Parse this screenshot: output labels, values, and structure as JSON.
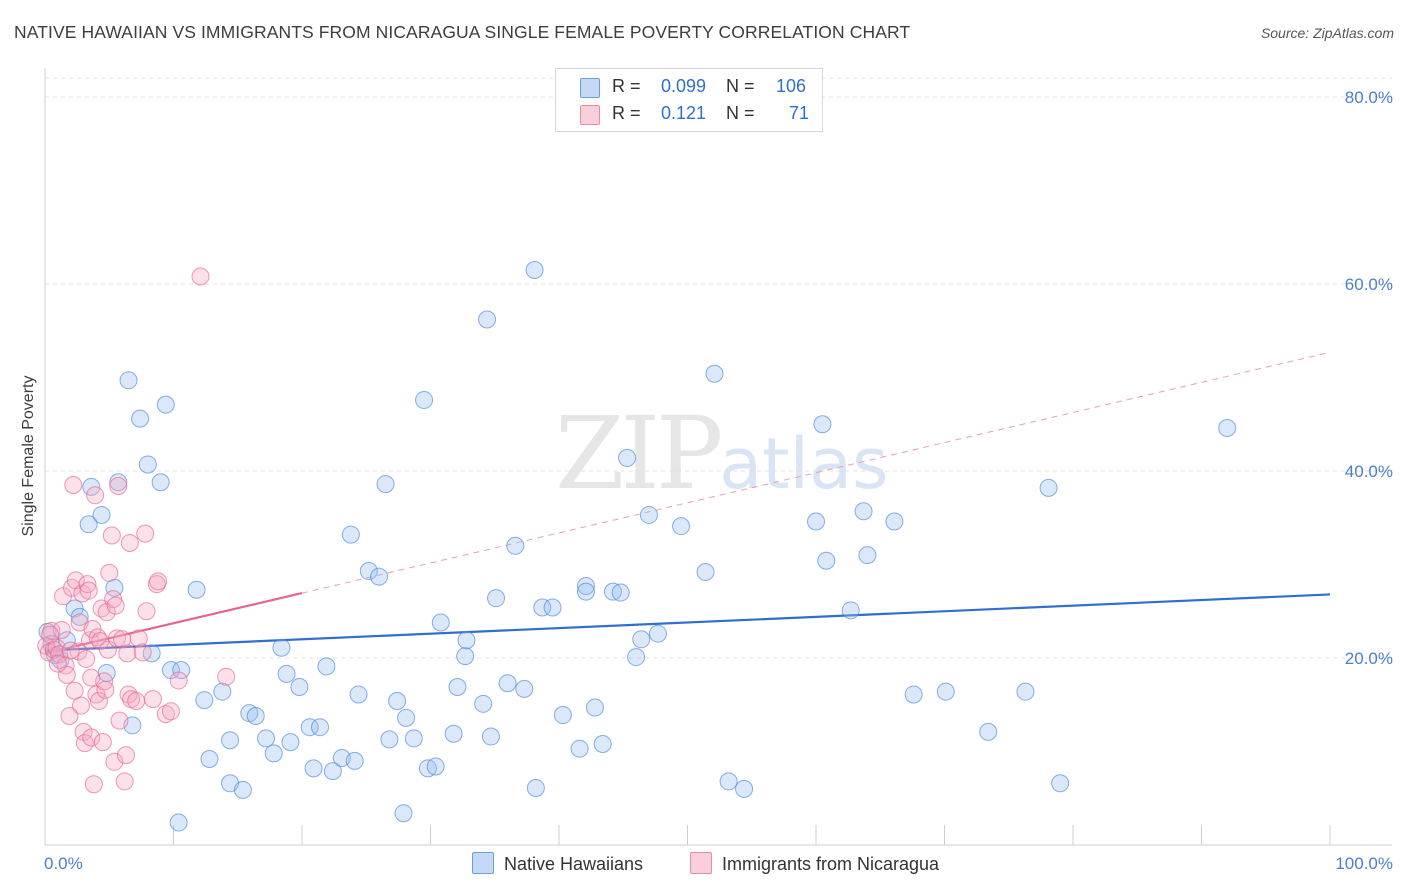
{
  "title": "NATIVE HAWAIIAN VS IMMIGRANTS FROM NICARAGUA SINGLE FEMALE POVERTY CORRELATION CHART",
  "source": "Source: ZipAtlas.com",
  "watermark": {
    "zip": "ZIP",
    "atlas": "atlas"
  },
  "legend": {
    "rows": [
      {
        "r_label": "R =",
        "r_value": "0.099",
        "n_label": "N =",
        "n_value": "106",
        "color": "#a9c8f0"
      },
      {
        "r_label": "R =",
        "r_value": "0.121",
        "n_label": "N =",
        "n_value": "71",
        "color": "#f5b8cc"
      }
    ]
  },
  "bottom_legend": {
    "items": [
      {
        "label": "Native Hawaiians",
        "color": "#a9c8f0"
      },
      {
        "label": "Immigrants from Nicaragua",
        "color": "#f5b8cc"
      }
    ]
  },
  "chart_data": {
    "type": "scatter",
    "title": "NATIVE HAWAIIAN VS IMMIGRANTS FROM NICARAGUA SINGLE FEMALE POVERTY CORRELATION CHART",
    "xlabel": "",
    "ylabel": "Single Female Poverty",
    "xlim": [
      0,
      100
    ],
    "ylim": [
      0,
      83
    ],
    "x_tick_labels": [
      "0.0%",
      "100.0%"
    ],
    "y_ticks": [
      20,
      40,
      60,
      80
    ],
    "y_tick_labels": [
      "20.0%",
      "40.0%",
      "60.0%",
      "80.0%"
    ],
    "grid": true,
    "series": [
      {
        "name": "Native Hawaiians",
        "color": "#4a86d8",
        "fill": "rgba(150,190,240,0.35)",
        "trend": {
          "x0": 0,
          "y0": 20.8,
          "x1": 100,
          "y1": 26.8,
          "dashed_from": null
        },
        "points": [
          [
            0.2,
            22.8
          ],
          [
            0.5,
            21.5
          ],
          [
            0.8,
            20.3
          ],
          [
            1.2,
            19.8
          ],
          [
            1.7,
            21.9
          ],
          [
            2.3,
            25.3
          ],
          [
            2.7,
            24.4
          ],
          [
            3.4,
            34.3
          ],
          [
            3.6,
            38.3
          ],
          [
            4.4,
            35.3
          ],
          [
            4.8,
            18.4
          ],
          [
            5.4,
            27.5
          ],
          [
            5.7,
            38.8
          ],
          [
            6.5,
            49.7
          ],
          [
            6.8,
            12.8
          ],
          [
            7.4,
            45.6
          ],
          [
            8.0,
            40.7
          ],
          [
            8.3,
            20.5
          ],
          [
            9.0,
            38.8
          ],
          [
            9.4,
            47.1
          ],
          [
            9.8,
            18.7
          ],
          [
            10.4,
            2.4
          ],
          [
            10.6,
            18.7
          ],
          [
            11.8,
            27.3
          ],
          [
            12.4,
            15.5
          ],
          [
            12.8,
            9.2
          ],
          [
            13.8,
            16.4
          ],
          [
            14.4,
            11.2
          ],
          [
            14.4,
            6.6
          ],
          [
            15.4,
            5.9
          ],
          [
            15.9,
            14.1
          ],
          [
            16.4,
            13.8
          ],
          [
            17.2,
            11.4
          ],
          [
            17.8,
            9.8
          ],
          [
            18.4,
            21.1
          ],
          [
            18.8,
            18.3
          ],
          [
            19.1,
            11.0
          ],
          [
            19.8,
            16.9
          ],
          [
            20.6,
            12.6
          ],
          [
            20.9,
            8.2
          ],
          [
            21.4,
            12.6
          ],
          [
            21.9,
            19.1
          ],
          [
            22.4,
            7.9
          ],
          [
            23.1,
            9.3
          ],
          [
            23.8,
            33.2
          ],
          [
            24.1,
            9.0
          ],
          [
            24.4,
            16.1
          ],
          [
            25.2,
            29.3
          ],
          [
            26.0,
            28.7
          ],
          [
            26.5,
            38.6
          ],
          [
            26.8,
            11.3
          ],
          [
            27.4,
            15.4
          ],
          [
            27.9,
            3.4
          ],
          [
            28.1,
            13.6
          ],
          [
            28.7,
            11.4
          ],
          [
            29.5,
            47.6
          ],
          [
            29.8,
            8.2
          ],
          [
            30.4,
            8.4
          ],
          [
            30.8,
            23.8
          ],
          [
            31.8,
            11.9
          ],
          [
            32.1,
            16.9
          ],
          [
            32.7,
            20.2
          ],
          [
            32.8,
            21.9
          ],
          [
            34.1,
            15.1
          ],
          [
            34.7,
            11.6
          ],
          [
            34.4,
            56.2
          ],
          [
            35.1,
            26.4
          ],
          [
            36.0,
            17.3
          ],
          [
            36.6,
            32.0
          ],
          [
            37.3,
            16.7
          ],
          [
            38.2,
            6.1
          ],
          [
            38.7,
            25.4
          ],
          [
            39.5,
            25.4
          ],
          [
            40.3,
            13.9
          ],
          [
            41.6,
            10.3
          ],
          [
            42.1,
            27.7
          ],
          [
            42.1,
            27.1
          ],
          [
            42.8,
            14.7
          ],
          [
            43.4,
            10.8
          ],
          [
            44.2,
            27.1
          ],
          [
            44.8,
            27.0
          ],
          [
            45.3,
            41.4
          ],
          [
            46.0,
            20.1
          ],
          [
            46.4,
            22.0
          ],
          [
            47.0,
            35.3
          ],
          [
            47.7,
            22.6
          ],
          [
            49.5,
            34.1
          ],
          [
            51.4,
            29.2
          ],
          [
            52.1,
            50.4
          ],
          [
            53.2,
            6.8
          ],
          [
            54.4,
            6.0
          ],
          [
            60.0,
            34.6
          ],
          [
            60.5,
            45.0
          ],
          [
            60.8,
            30.4
          ],
          [
            62.7,
            25.1
          ],
          [
            63.7,
            35.7
          ],
          [
            64.0,
            31.0
          ],
          [
            66.1,
            34.6
          ],
          [
            67.6,
            16.1
          ],
          [
            70.1,
            16.4
          ],
          [
            73.4,
            12.1
          ],
          [
            76.3,
            16.4
          ],
          [
            78.1,
            38.2
          ],
          [
            79.0,
            6.6
          ],
          [
            92.0,
            44.6
          ],
          [
            38.1,
            61.5
          ]
        ]
      },
      {
        "name": "Immigrants from Nicaragua",
        "color": "#e8638f",
        "fill": "rgba(245,170,195,0.35)",
        "trend": {
          "x0": 0,
          "y0": 20.5,
          "x1": 100,
          "y1": 52.7,
          "solid_until": 20
        },
        "points": [
          [
            0.1,
            21.3
          ],
          [
            0.3,
            20.6
          ],
          [
            0.5,
            22.9
          ],
          [
            0.7,
            20.9
          ],
          [
            0.9,
            21.1
          ],
          [
            1.1,
            20.4
          ],
          [
            1.3,
            23.0
          ],
          [
            1.4,
            26.6
          ],
          [
            1.6,
            19.2
          ],
          [
            1.7,
            18.2
          ],
          [
            1.9,
            13.8
          ],
          [
            2.1,
            27.5
          ],
          [
            2.2,
            38.5
          ],
          [
            2.3,
            16.5
          ],
          [
            2.4,
            28.3
          ],
          [
            2.6,
            20.7
          ],
          [
            2.7,
            23.8
          ],
          [
            2.8,
            14.9
          ],
          [
            2.9,
            26.9
          ],
          [
            3.0,
            12.1
          ],
          [
            3.1,
            10.9
          ],
          [
            3.2,
            19.9
          ],
          [
            3.3,
            27.9
          ],
          [
            3.4,
            27.2
          ],
          [
            3.5,
            21.9
          ],
          [
            3.6,
            11.5
          ],
          [
            3.7,
            23.1
          ],
          [
            3.8,
            6.5
          ],
          [
            3.9,
            37.4
          ],
          [
            4.0,
            16.1
          ],
          [
            4.1,
            22.2
          ],
          [
            4.2,
            15.4
          ],
          [
            4.3,
            21.8
          ],
          [
            4.4,
            25.3
          ],
          [
            4.6,
            17.5
          ],
          [
            4.7,
            16.6
          ],
          [
            4.8,
            24.9
          ],
          [
            4.9,
            20.9
          ],
          [
            5.0,
            29.1
          ],
          [
            5.2,
            33.1
          ],
          [
            5.3,
            26.3
          ],
          [
            5.4,
            8.9
          ],
          [
            5.5,
            25.6
          ],
          [
            5.6,
            22.1
          ],
          [
            5.7,
            38.4
          ],
          [
            5.8,
            13.3
          ],
          [
            6.0,
            22.0
          ],
          [
            6.2,
            6.8
          ],
          [
            6.3,
            9.6
          ],
          [
            6.4,
            20.5
          ],
          [
            6.5,
            16.1
          ],
          [
            6.6,
            32.3
          ],
          [
            6.7,
            15.6
          ],
          [
            7.1,
            15.4
          ],
          [
            7.3,
            22.1
          ],
          [
            7.6,
            20.6
          ],
          [
            7.8,
            33.3
          ],
          [
            7.9,
            25.0
          ],
          [
            8.4,
            15.6
          ],
          [
            8.7,
            27.9
          ],
          [
            8.8,
            28.2
          ],
          [
            9.4,
            14.0
          ],
          [
            9.8,
            14.3
          ],
          [
            10.4,
            17.6
          ],
          [
            12.1,
            60.8
          ],
          [
            14.1,
            18.0
          ],
          [
            0.4,
            22.5
          ],
          [
            1.0,
            19.4
          ],
          [
            2.0,
            20.8
          ],
          [
            4.5,
            11.0
          ],
          [
            3.6,
            17.9
          ]
        ]
      }
    ]
  }
}
